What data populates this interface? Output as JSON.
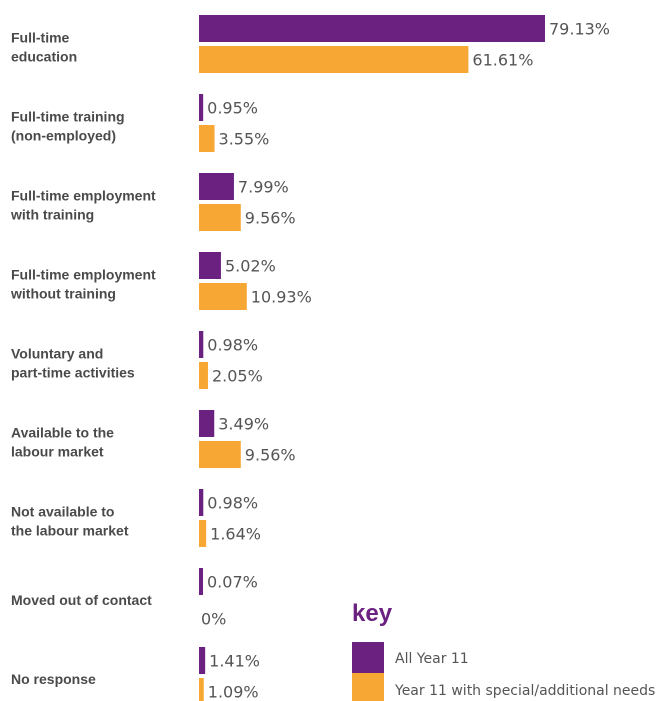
{
  "colors": {
    "all_year_11": "#6B2180",
    "special_needs": "#F7A733",
    "key_title": "#6B2180"
  },
  "chart_data": {
    "type": "bar",
    "orientation": "horizontal",
    "categories": [
      [
        "Full-time",
        "education"
      ],
      [
        "Full-time training",
        "(non-employed)"
      ],
      [
        "Full-time employment",
        "with training"
      ],
      [
        "Full-time employment",
        "without training"
      ],
      [
        "Voluntary and",
        "part-time activities"
      ],
      [
        "Available to the",
        "labour market"
      ],
      [
        "Not available to",
        "the labour market"
      ],
      [
        "Moved out of contact"
      ],
      [
        "No response"
      ]
    ],
    "series": [
      {
        "name": "All Year 11",
        "values": [
          79.13,
          0.95,
          7.99,
          5.02,
          0.98,
          3.49,
          0.98,
          0.07,
          1.41
        ],
        "labels": [
          "79.13%",
          "0.95%",
          "7.99%",
          "5.02%",
          "0.98%",
          "3.49%",
          "0.98%",
          "0.07%",
          "1.41%"
        ]
      },
      {
        "name": "Year 11 with special/additional needs",
        "values": [
          61.61,
          3.55,
          9.56,
          10.93,
          2.05,
          9.56,
          1.64,
          0,
          1.09
        ],
        "labels": [
          "61.61%",
          "3.55%",
          "9.56%",
          "10.93%",
          "2.05%",
          "9.56%",
          "1.64%",
          "0%",
          "1.09%"
        ]
      }
    ],
    "xlim": [
      0,
      79.13
    ],
    "grid": false,
    "legend": {
      "title": "key",
      "position": "bottom-right"
    }
  }
}
